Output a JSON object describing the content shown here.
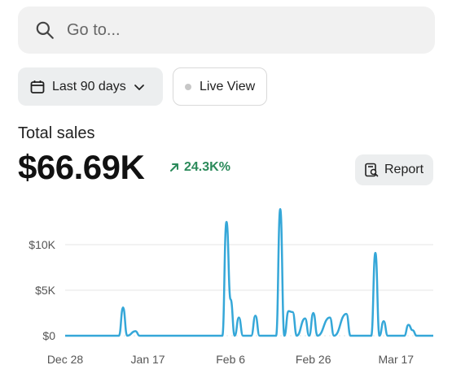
{
  "search": {
    "placeholder": "Go to..."
  },
  "filters": {
    "date_range_label": "Last 90 days",
    "live_view_label": "Live View"
  },
  "metric": {
    "label": "Total sales",
    "value": "$66.69K",
    "change": "24.3K%",
    "report_label": "Report"
  },
  "colors": {
    "line": "#35a7d8",
    "change": "#2b8a5a",
    "grid": "#e6e6e6"
  },
  "chart_data": {
    "type": "line",
    "x_labels": [
      "Dec 28",
      "Jan 17",
      "Feb 6",
      "Feb 26",
      "Mar 17"
    ],
    "y_ticks": [
      "$0",
      "$5K",
      "$10K"
    ],
    "ylim": [
      0,
      14000
    ],
    "grid": true,
    "series": [
      {
        "values": [
          {
            "date": "2023-12-28",
            "y": 0
          },
          {
            "date": "2024-01-10",
            "y": 0
          },
          {
            "date": "2024-01-11",
            "y": 3100
          },
          {
            "date": "2024-01-12",
            "y": 0
          },
          {
            "date": "2024-01-14",
            "y": 500
          },
          {
            "date": "2024-01-15",
            "y": 0
          },
          {
            "date": "2024-02-04",
            "y": 0
          },
          {
            "date": "2024-02-05",
            "y": 12500
          },
          {
            "date": "2024-02-06",
            "y": 4000
          },
          {
            "date": "2024-02-07",
            "y": 0
          },
          {
            "date": "2024-02-08",
            "y": 2000
          },
          {
            "date": "2024-02-09",
            "y": 0
          },
          {
            "date": "2024-02-11",
            "y": 0
          },
          {
            "date": "2024-02-12",
            "y": 2200
          },
          {
            "date": "2024-02-13",
            "y": 0
          },
          {
            "date": "2024-02-17",
            "y": 0
          },
          {
            "date": "2024-02-18",
            "y": 13900
          },
          {
            "date": "2024-02-19",
            "y": 0
          },
          {
            "date": "2024-02-20",
            "y": 2700
          },
          {
            "date": "2024-02-21",
            "y": 2600
          },
          {
            "date": "2024-02-22",
            "y": 0
          },
          {
            "date": "2024-02-24",
            "y": 1900
          },
          {
            "date": "2024-02-25",
            "y": 0
          },
          {
            "date": "2024-02-26",
            "y": 2500
          },
          {
            "date": "2024-02-27",
            "y": 0
          },
          {
            "date": "2024-03-01",
            "y": 2000
          },
          {
            "date": "2024-03-02",
            "y": 0
          },
          {
            "date": "2024-03-05",
            "y": 2400
          },
          {
            "date": "2024-03-06",
            "y": 0
          },
          {
            "date": "2024-03-11",
            "y": 0
          },
          {
            "date": "2024-03-12",
            "y": 9100
          },
          {
            "date": "2024-03-13",
            "y": 0
          },
          {
            "date": "2024-03-14",
            "y": 1600
          },
          {
            "date": "2024-03-15",
            "y": 0
          },
          {
            "date": "2024-03-19",
            "y": 0
          },
          {
            "date": "2024-03-20",
            "y": 1200
          },
          {
            "date": "2024-03-21",
            "y": 600
          },
          {
            "date": "2024-03-22",
            "y": 0
          },
          {
            "date": "2024-03-26",
            "y": 0
          }
        ]
      }
    ]
  }
}
